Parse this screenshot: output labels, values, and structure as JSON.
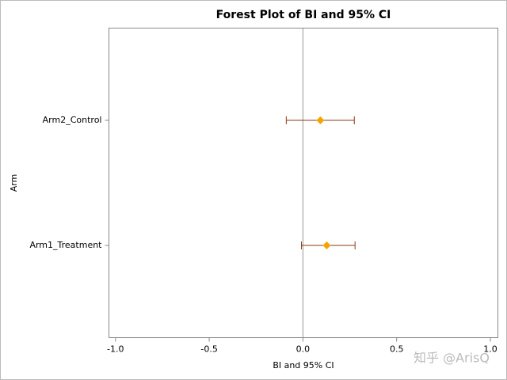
{
  "chart_data": {
    "type": "forest",
    "title": "Forest Plot of BI and 95% CI",
    "xlabel": "BI and 95% CI",
    "ylabel": "Arm",
    "categories": [
      "Arm2_Control",
      "Arm1_Treatment"
    ],
    "values": [
      0.093,
      0.127
    ],
    "lower": [
      -0.089,
      -0.008
    ],
    "upper": [
      0.274,
      0.278
    ],
    "color": "#f5a300",
    "ci_color": "#8b3a0f",
    "refline": 0,
    "xlim": [
      -1.035,
      1.04
    ],
    "xticks": [
      {
        "value": -1,
        "label": "-1.0"
      },
      -0.5,
      {
        "value": 0,
        "label": "0.0"
      },
      0.5,
      {
        "value": 1,
        "label": "1.0"
      }
    ],
    "watermark": "知乎 @ArisQ"
  }
}
